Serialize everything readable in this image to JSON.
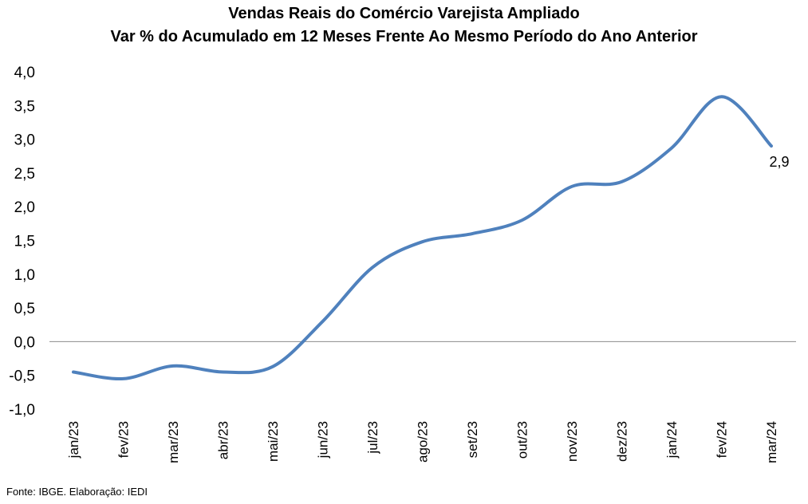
{
  "chart_data": {
    "type": "line",
    "title": "Vendas Reais do Comércio Varejista Ampliado",
    "subtitle": "Var % do Acumulado em 12 Meses Frente Ao Mesmo Período do Ano Anterior",
    "xlabel": "",
    "ylabel": "",
    "categories": [
      "jan/23",
      "fev/23",
      "mar/23",
      "abr/23",
      "mai/23",
      "jun/23",
      "jul/23",
      "ago/23",
      "set/23",
      "out/23",
      "nov/23",
      "dez/23",
      "jan/24",
      "fev/24",
      "mar/24"
    ],
    "series": [
      {
        "values": [
          -0.45,
          -0.55,
          -0.36,
          -0.45,
          -0.37,
          0.3,
          1.1,
          1.48,
          1.6,
          1.8,
          2.3,
          2.37,
          2.87,
          3.63,
          2.9
        ],
        "color": "#4F81BD"
      }
    ],
    "ylim": [
      -1.0,
      4.0
    ],
    "yticks": [
      "-1,0",
      "-0,5",
      "0,0",
      "0,5",
      "1,0",
      "1,5",
      "2,0",
      "2,5",
      "3,0",
      "3,5",
      "4,0"
    ],
    "data_labels": [
      {
        "index": 14,
        "text": "2,9"
      }
    ],
    "grid": false,
    "legend": "none"
  },
  "source": "Fonte: IBGE. Elaboração: IEDI"
}
